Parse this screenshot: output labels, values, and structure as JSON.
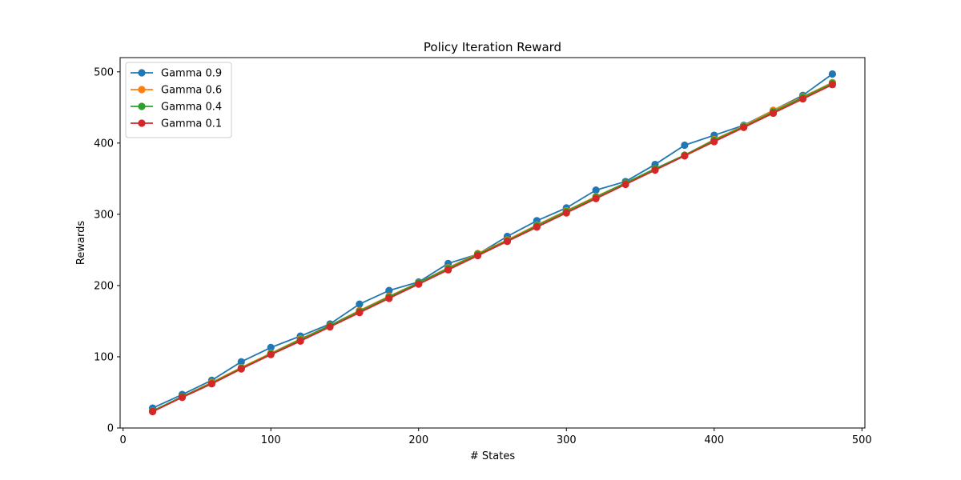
{
  "chart_data": {
    "type": "line",
    "title": "Policy Iteration Reward",
    "xlabel": "# States",
    "ylabel": "Rewards",
    "xlim": [
      -2,
      502
    ],
    "ylim": [
      0,
      520
    ],
    "xticks": [
      "0",
      "100",
      "200",
      "300",
      "400",
      "500"
    ],
    "yticks": [
      "0",
      "100",
      "200",
      "300",
      "400",
      "500"
    ],
    "grid": false,
    "legend_position": "top-left",
    "x": [
      20,
      40,
      60,
      80,
      100,
      120,
      140,
      160,
      180,
      200,
      220,
      240,
      260,
      280,
      300,
      320,
      340,
      360,
      380,
      400,
      420,
      440,
      460,
      480
    ],
    "series": [
      {
        "name": "Gamma 0.9",
        "color": "#1f77b4",
        "values": [
          28,
          47,
          67,
          93,
          113,
          129,
          146,
          174,
          193,
          205,
          231,
          244,
          269,
          291,
          309,
          334,
          346,
          370,
          397,
          411,
          425,
          446,
          467,
          497
        ]
      },
      {
        "name": "Gamma 0.6",
        "color": "#ff7f0e",
        "values": [
          24,
          44,
          64,
          85,
          105,
          125,
          144,
          165,
          185,
          204,
          225,
          245,
          264,
          285,
          305,
          325,
          344,
          364,
          383,
          405,
          424,
          446,
          465,
          485
        ]
      },
      {
        "name": "Gamma 0.4",
        "color": "#2ca02c",
        "values": [
          24,
          44,
          63,
          84,
          104,
          124,
          144,
          164,
          184,
          204,
          224,
          244,
          263,
          284,
          304,
          324,
          344,
          364,
          383,
          404,
          423,
          444,
          464,
          484
        ]
      },
      {
        "name": "Gamma 0.1",
        "color": "#d62728",
        "values": [
          23,
          43,
          62,
          83,
          103,
          122,
          142,
          162,
          182,
          202,
          222,
          242,
          262,
          282,
          302,
          322,
          342,
          362,
          382,
          402,
          422,
          442,
          462,
          482
        ]
      }
    ]
  }
}
